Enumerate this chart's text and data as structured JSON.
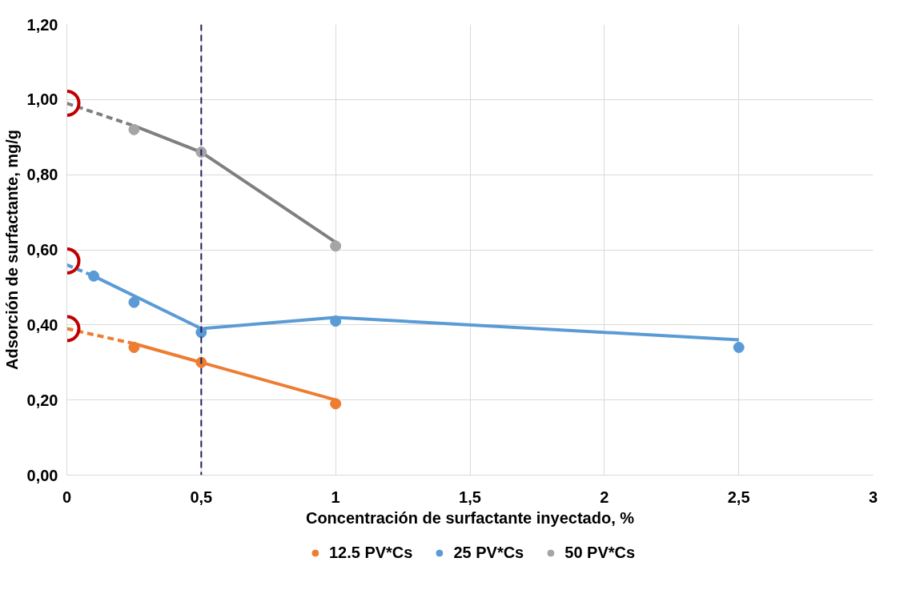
{
  "chart_data": {
    "type": "scatter",
    "xlabel": "Concentración de surfactante inyectado, %",
    "ylabel": "Adsorción de surfactante, mg/g",
    "xlim": [
      0,
      3
    ],
    "ylim": [
      0,
      1.2
    ],
    "xticks": [
      0,
      {
        "value": 0.5,
        "label": "0,5"
      },
      1,
      {
        "value": 1.5,
        "label": "1,5"
      },
      2,
      {
        "value": 2.5,
        "label": "2,5"
      },
      3
    ],
    "yticks": [
      {
        "value": 0,
        "label": "0,00"
      },
      {
        "value": 0.2,
        "label": "0,20"
      },
      {
        "value": 0.4,
        "label": "0,40"
      },
      {
        "value": 0.6,
        "label": "0,60"
      },
      {
        "value": 0.8,
        "label": "0,80"
      },
      {
        "value": 1.0,
        "label": "1,00"
      },
      {
        "value": 1.2,
        "label": "1,20"
      }
    ],
    "grid": true,
    "legend": "bottom",
    "marker": "circle",
    "series": [
      {
        "type": "line",
        "marker": "none",
        "line_style": "dashed",
        "color": "#ed7d31",
        "x": [
          0,
          0.25
        ],
        "values": [
          0.39,
          0.35
        ]
      },
      {
        "type": "line",
        "marker": "none",
        "line_style": "solid",
        "color": "#ed7d31",
        "x": [
          0.25,
          0.5,
          1
        ],
        "values": [
          0.35,
          0.3,
          0.2
        ]
      },
      {
        "type": "line",
        "marker": "none",
        "line_style": "dashed",
        "color": "#5b9bd5",
        "x": [
          0,
          0.1
        ],
        "values": [
          0.56,
          0.53
        ]
      },
      {
        "type": "line",
        "marker": "none",
        "line_style": "solid",
        "color": "#5b9bd5",
        "x": [
          0.1,
          0.5,
          1,
          2.5
        ],
        "values": [
          0.53,
          0.39,
          0.42,
          0.36
        ]
      },
      {
        "type": "line",
        "marker": "none",
        "line_style": "dashed",
        "color": "#7f7f7f",
        "x": [
          0,
          0.25
        ],
        "values": [
          0.99,
          0.93
        ]
      },
      {
        "type": "line",
        "marker": "none",
        "line_style": "solid",
        "color": "#7f7f7f",
        "x": [
          0.25,
          0.5,
          1
        ],
        "values": [
          0.93,
          0.86,
          0.62
        ]
      },
      {
        "name": "12.5 PV*Cs",
        "color": "#ed7d31",
        "x": [
          0.25,
          0.5,
          1
        ],
        "values": [
          0.34,
          0.3,
          0.19
        ]
      },
      {
        "name": "25 PV*Cs",
        "color": "#5b9bd5",
        "x": [
          0.1,
          0.25,
          0.5,
          1,
          2.5
        ],
        "values": [
          0.53,
          0.46,
          0.38,
          0.41,
          0.34
        ]
      },
      {
        "name": "50 PV*Cs",
        "color": "#a5a5a5",
        "x": [
          0.25,
          0.5,
          1
        ],
        "values": [
          0.92,
          0.86,
          0.61
        ]
      },
      {
        "color": "#c00000",
        "x": [
          0,
          0,
          0
        ],
        "values": [
          0.39,
          0.57,
          0.99
        ]
      }
    ],
    "ref_lines": [
      {
        "axis": "x",
        "value": 0.5,
        "color": "#1f2060",
        "line_style": "dashed"
      }
    ]
  }
}
